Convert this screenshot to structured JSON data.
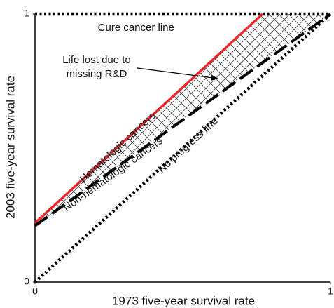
{
  "chart_data": {
    "type": "line",
    "x_label": "1973 five-year survival rate",
    "y_label": "2003 five-year survival rate",
    "xlim": [
      0,
      1
    ],
    "ylim": [
      0,
      1
    ],
    "xticks": [
      0,
      1
    ],
    "yticks": [
      0,
      1
    ],
    "annotation": [
      "Life lost due to",
      "missing R&D"
    ],
    "series": [
      {
        "name": "Cure cancer line",
        "color": "#000000",
        "style": "dotted",
        "x": [
          0,
          1
        ],
        "values": [
          1,
          1
        ]
      },
      {
        "name": "No progress line",
        "color": "#000000",
        "style": "dotted",
        "x": [
          0,
          1
        ],
        "values": [
          0,
          1
        ]
      },
      {
        "name": "Hematologic cancers",
        "color": "#e8262b",
        "style": "solid",
        "x": [
          0,
          0.77
        ],
        "values": [
          0.22,
          1
        ]
      },
      {
        "name": "Non-hematologic cancers",
        "color": "#000000",
        "style": "dashed",
        "x": [
          0,
          1
        ],
        "values": [
          0.21,
          1
        ]
      }
    ]
  }
}
